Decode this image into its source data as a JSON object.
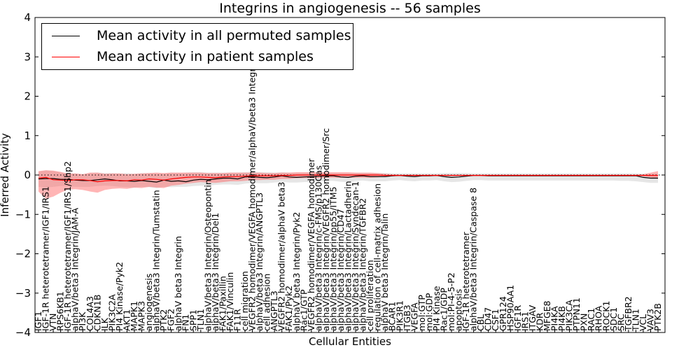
{
  "chart_data": {
    "type": "line",
    "title": "Integrins in angiogenesis -- 56 samples",
    "xlabel": "Cellular Entities",
    "ylabel": "Inferred Activity",
    "ylim": [
      -4,
      4
    ],
    "yticks": [
      -4,
      -3,
      -2,
      -1,
      0,
      1,
      2,
      3,
      4
    ],
    "yticklabels": [
      "−4",
      "−3",
      "−2",
      "−1",
      "0",
      "1",
      "2",
      "3",
      "4"
    ],
    "categories": [
      "IGF1",
      "IGF-1R heterotetramer/IGF1/IRS1",
      "VTN",
      "RPS6KB1",
      "IGF-1R heterotetramer/IGF1/IRS1/Shp2",
      "alphaV/beta3 Integrin/JAM-A",
      "PI3K",
      "COL4A3",
      "CDKN1B",
      "ILK",
      "PIK3C2A",
      "PI4 Kinase/Pyk2",
      "AKT1",
      "MAPK1",
      "MAPK3",
      "angiogenesis",
      "alphaV/beta3 Integrin/Tumstatin",
      "PTK2",
      "FGF2",
      "alphaV beta3 Integrin",
      "FN1",
      "SPP1",
      "TLN1",
      "alphaV/beta3 Integrin/Osteopontin",
      "alphaV/beta3 Integrin/Del1",
      "FAK1/Paxillin",
      "FAK1/Vinculin",
      "F11R",
      "cell migration",
      "VEGFR2 homodimer/VEGFA homodimer/alphaV/beta3 Integrin",
      "alphaV/beta3 Integrin/ANGPTL3",
      "cell adhesion",
      "ANGPTL3",
      "VEGFR2 homodimer/alphaV beta3",
      "FAK1/Pyk2",
      "alphaV beta3 Integrin/Pyk2",
      "Rac1/GTP",
      "VEGFR2 homodimer/VEGFA homodimer",
      "alphaV/beta3 Integrin/c-FMS/p130Cas",
      "alphaV/beta3 Integrin/VEGFR2 homodimer/Src",
      "alphaV/beta3 Integrin/pp55/ITM5",
      "alphaV/beta3 Integrin/CD47",
      "alphaV/beta3 Integrin/Lactadherin",
      "alphaV/beta3 Integrin/Syndecan-1",
      "alphaV/beta3 Integrin/TGFBR2",
      "cell proliferation",
      "regulation of cell-matrix adhesion",
      "alphaV beta3 Integrin/Talin",
      "BCAR1",
      "PIK3R1",
      "ITGB3",
      "VEGFA",
      "mol:GTP",
      "mol:GDP",
      "PI4 Kinase",
      "Rac1/GDP",
      "mol:PI-4-5-P2",
      "apoptosis",
      "IGF-1R heterotetramer",
      "alphaV/beta3 Integrin/Caspase 8",
      "CBL",
      "CD47",
      "CSF1",
      "GPR124",
      "HSP90AA1",
      "IGF1R",
      "IRS1",
      "ITGAV",
      "KDR",
      "MFGE8",
      "PI4KA",
      "PI4KB",
      "PIK3CA",
      "PTPN11",
      "PXN",
      "RAC1",
      "RHOA",
      "ROCK1",
      "SDC1",
      "SRC",
      "TGFBR2",
      "TLN1",
      "VCL",
      "VAV3",
      "PTK2B"
    ],
    "series": [
      {
        "name": "Mean activity in all permuted samples",
        "color": "#000000",
        "values": [
          -0.1,
          -0.09,
          -0.09,
          -0.11,
          -0.11,
          -0.13,
          -0.14,
          -0.14,
          -0.12,
          -0.1,
          -0.12,
          -0.15,
          -0.15,
          -0.16,
          -0.14,
          -0.16,
          -0.18,
          -0.13,
          -0.16,
          -0.15,
          -0.17,
          -0.13,
          -0.11,
          -0.12,
          -0.1,
          -0.08,
          -0.08,
          -0.1,
          -0.05,
          -0.04,
          -0.06,
          -0.07,
          -0.05,
          -0.02,
          -0.05,
          -0.06,
          -0.05,
          -0.04,
          -0.03,
          -0.02,
          -0.02,
          -0.05,
          -0.06,
          -0.03,
          -0.02,
          -0.04,
          -0.04,
          -0.04,
          -0.02,
          -0.01,
          -0.03,
          -0.04,
          -0.02,
          -0.02,
          -0.01,
          -0.04,
          -0.06,
          -0.05,
          -0.03,
          -0.01,
          -0.01,
          -0.02,
          -0.02,
          -0.02,
          -0.02,
          -0.02,
          -0.02,
          -0.02,
          -0.02,
          -0.02,
          -0.02,
          -0.02,
          -0.02,
          -0.02,
          -0.02,
          -0.02,
          -0.02,
          -0.02,
          -0.02,
          -0.02,
          -0.02,
          -0.02,
          -0.06,
          -0.08,
          -0.08
        ],
        "band": "#9a9a9a",
        "band_upper": [
          0.08,
          0.12,
          0.1,
          0.06,
          0.05,
          0.04,
          0.02,
          0.05,
          0.06,
          0.05,
          0.05,
          0.04,
          0.05,
          0.03,
          0.05,
          0.05,
          0.04,
          0.03,
          0.06,
          0.05,
          0.06,
          0.07,
          0.07,
          0.06,
          0.06,
          0.06,
          0.06,
          0.06,
          0.07,
          0.07,
          0.07,
          0.07,
          0.06,
          0.07,
          0.06,
          0.06,
          0.06,
          0.06,
          0.06,
          0.06,
          0.05,
          0.05,
          0.05,
          0.05,
          0.05,
          0.05,
          0.05,
          0.05,
          0.04,
          0.04,
          0.04,
          0.04,
          0.04,
          0.04,
          0.04,
          0.05,
          0.05,
          0.05,
          0.05,
          0.04,
          0.04,
          0.04,
          0.04,
          0.04,
          0.04,
          0.04,
          0.04,
          0.04,
          0.04,
          0.04,
          0.04,
          0.04,
          0.04,
          0.04,
          0.04,
          0.04,
          0.04,
          0.04,
          0.04,
          0.04,
          0.04,
          0.04,
          0.03,
          0.03,
          0.04
        ],
        "band_lower": [
          -0.3,
          -0.32,
          -0.3,
          -0.28,
          -0.28,
          -0.3,
          -0.3,
          -0.3,
          -0.28,
          -0.27,
          -0.28,
          -0.3,
          -0.31,
          -0.32,
          -0.3,
          -0.31,
          -0.33,
          -0.3,
          -0.31,
          -0.3,
          -0.3,
          -0.28,
          -0.27,
          -0.27,
          -0.25,
          -0.24,
          -0.24,
          -0.25,
          -0.22,
          -0.2,
          -0.21,
          -0.21,
          -0.19,
          -0.17,
          -0.19,
          -0.19,
          -0.18,
          -0.17,
          -0.16,
          -0.15,
          -0.15,
          -0.17,
          -0.18,
          -0.15,
          -0.14,
          -0.16,
          -0.16,
          -0.16,
          -0.14,
          -0.13,
          -0.15,
          -0.16,
          -0.14,
          -0.14,
          -0.13,
          -0.16,
          -0.18,
          -0.17,
          -0.15,
          -0.13,
          -0.13,
          -0.14,
          -0.14,
          -0.14,
          -0.14,
          -0.14,
          -0.14,
          -0.14,
          -0.14,
          -0.14,
          -0.14,
          -0.14,
          -0.14,
          -0.14,
          -0.14,
          -0.14,
          -0.14,
          -0.14,
          -0.14,
          -0.15,
          -0.15,
          -0.16,
          -0.18,
          -0.2,
          -0.2
        ]
      },
      {
        "name": "Mean activity in patient samples",
        "color": "#ff0000",
        "values": [
          -0.08,
          -0.06,
          -0.12,
          -0.13,
          -0.14,
          -0.12,
          -0.12,
          -0.14,
          -0.17,
          -0.15,
          -0.14,
          -0.14,
          -0.15,
          -0.12,
          -0.13,
          -0.1,
          -0.11,
          -0.13,
          -0.1,
          -0.08,
          -0.06,
          -0.05,
          -0.05,
          -0.06,
          -0.07,
          -0.05,
          -0.04,
          -0.04,
          -0.03,
          -0.02,
          -0.02,
          -0.02,
          -0.02,
          -0.01,
          -0.01,
          0.0,
          0.0,
          0.0,
          0.0,
          0.0,
          0.0,
          0.0,
          0.0,
          0.0,
          0.0,
          0.0,
          0.0,
          -0.01,
          -0.01,
          -0.01,
          -0.01,
          -0.01,
          -0.01,
          -0.01,
          -0.01,
          -0.01,
          -0.01,
          -0.01,
          -0.01,
          -0.01,
          -0.01,
          -0.01,
          -0.01,
          -0.01,
          -0.01,
          -0.01,
          -0.01,
          -0.01,
          -0.01,
          -0.01,
          -0.01,
          -0.01,
          -0.01,
          -0.01,
          -0.01,
          -0.01,
          -0.01,
          -0.01,
          -0.01,
          -0.01,
          -0.01,
          -0.01,
          -0.01,
          -0.01,
          -0.01
        ],
        "band": "#ff5a5a",
        "band_upper": [
          0.1,
          0.12,
          0.11,
          0.08,
          0.03,
          0.04,
          0.02,
          0.06,
          0.06,
          0.03,
          0.04,
          0.04,
          0.02,
          0.03,
          0.04,
          0.05,
          0.06,
          0.05,
          0.06,
          0.06,
          0.06,
          0.06,
          0.06,
          0.05,
          0.05,
          0.05,
          0.06,
          0.06,
          0.06,
          0.06,
          0.06,
          0.05,
          0.05,
          0.06,
          0.06,
          0.07,
          0.07,
          0.07,
          0.07,
          0.07,
          0.07,
          0.07,
          0.07,
          0.06,
          0.06,
          0.06,
          0.05,
          0.03,
          0.02,
          0.01,
          0.01,
          0.01,
          0.01,
          0.01,
          0.01,
          0.01,
          0.01,
          0.01,
          0.01,
          0.01,
          0.01,
          0.01,
          0.01,
          0.01,
          0.01,
          0.01,
          0.01,
          0.01,
          0.01,
          0.01,
          0.01,
          0.01,
          0.01,
          0.01,
          0.01,
          0.01,
          0.01,
          0.01,
          0.01,
          0.01,
          0.01,
          0.01,
          0.02,
          0.06,
          0.1
        ],
        "band_lower": [
          -0.42,
          -0.6,
          -0.55,
          -0.45,
          -0.37,
          -0.36,
          -0.38,
          -0.42,
          -0.45,
          -0.38,
          -0.35,
          -0.34,
          -0.35,
          -0.32,
          -0.33,
          -0.3,
          -0.32,
          -0.33,
          -0.27,
          -0.25,
          -0.22,
          -0.2,
          -0.18,
          -0.19,
          -0.2,
          -0.18,
          -0.16,
          -0.16,
          -0.15,
          -0.13,
          -0.13,
          -0.12,
          -0.12,
          -0.1,
          -0.1,
          -0.08,
          -0.08,
          -0.08,
          -0.08,
          -0.07,
          -0.07,
          -0.07,
          -0.07,
          -0.07,
          -0.07,
          -0.07,
          -0.06,
          -0.04,
          -0.03,
          -0.02,
          -0.02,
          -0.02,
          -0.02,
          -0.02,
          -0.02,
          -0.02,
          -0.02,
          -0.02,
          -0.02,
          -0.02,
          -0.02,
          -0.02,
          -0.02,
          -0.02,
          -0.02,
          -0.02,
          -0.02,
          -0.02,
          -0.02,
          -0.02,
          -0.02,
          -0.02,
          -0.02,
          -0.02,
          -0.02,
          -0.02,
          -0.02,
          -0.02,
          -0.02,
          -0.02,
          -0.02,
          -0.02,
          -0.03,
          -0.06,
          -0.1
        ]
      }
    ],
    "legend_position": "top-left",
    "reference_line": 0
  }
}
